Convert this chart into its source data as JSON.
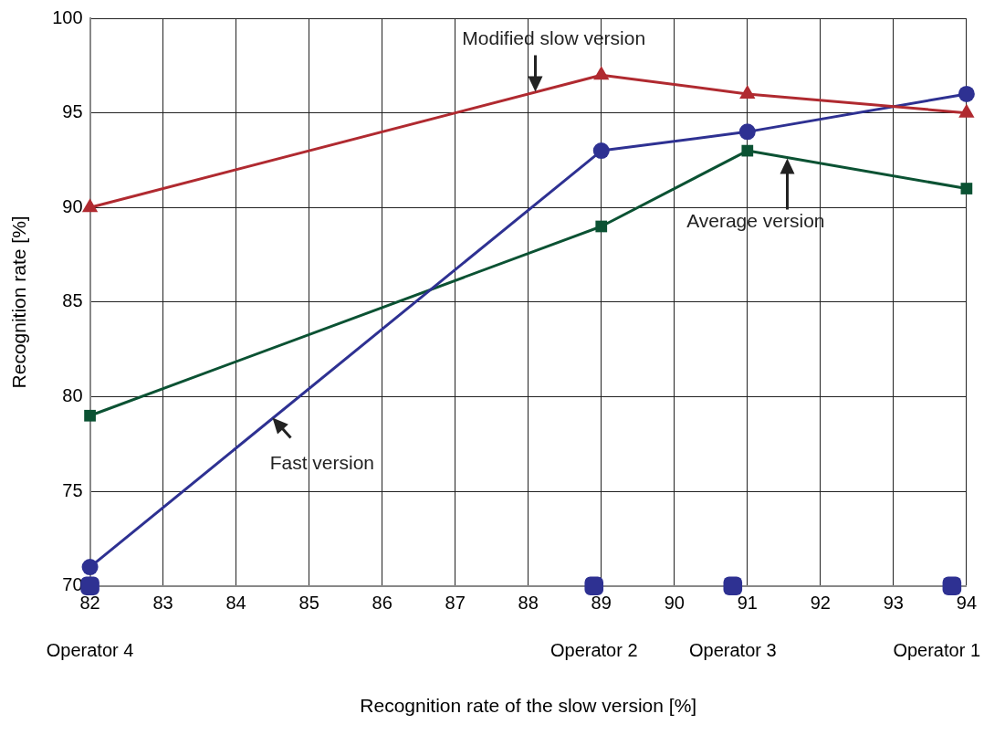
{
  "chart_data": {
    "type": "line",
    "xlabel": "Recognition rate of the slow version [%]",
    "ylabel": "Recognition rate [%]",
    "xlim": [
      82,
      94
    ],
    "xticks": [
      82,
      83,
      84,
      85,
      86,
      87,
      88,
      89,
      90,
      91,
      92,
      93,
      94
    ],
    "ylim": [
      70,
      100
    ],
    "yticks": [
      70,
      75,
      80,
      85,
      90,
      95,
      100
    ],
    "grid": true,
    "series": [
      {
        "color": "#b02a30",
        "marker": "triangle",
        "x": [
          82,
          89,
          91,
          94
        ],
        "values": [
          90,
          97,
          96,
          95
        ]
      },
      {
        "color": "#2e3192",
        "marker": "circle",
        "x": [
          82,
          89,
          91,
          94
        ],
        "values": [
          71,
          93,
          94,
          96
        ]
      },
      {
        "color": "#0b5233",
        "marker": "square",
        "x": [
          82,
          89,
          91,
          94
        ],
        "values": [
          79,
          89,
          93,
          91
        ]
      },
      {
        "type": "scatter",
        "color": "#2e3192",
        "marker": "square",
        "x": [
          82,
          88.9,
          90.8,
          93.8
        ],
        "values": [
          70,
          70,
          70,
          70
        ],
        "value_labels": [
          "Operator 4",
          "Operator 2",
          "Operator 3",
          "Operator 1"
        ]
      }
    ],
    "annotations": [
      {
        "text": "Modified slow version",
        "x": 88.1,
        "y": 96.1
      },
      {
        "text": "Average version",
        "x": 91.55,
        "y": 92.6
      },
      {
        "text": "Fast version",
        "x": 84.5,
        "y": 78.9
      }
    ]
  }
}
